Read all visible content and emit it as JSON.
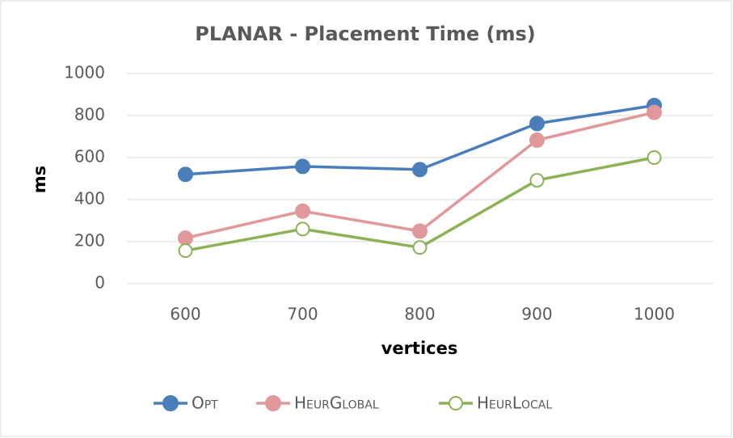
{
  "chart_data": {
    "type": "line",
    "title": "PLANAR - Placement Time (ms)",
    "x_label": "vertices",
    "y_label": "ms",
    "categories": [
      "600",
      "700",
      "800",
      "900",
      "1000"
    ],
    "series": [
      {
        "name": "Opt",
        "color": "#4a7ebb",
        "marker": "filled",
        "values": [
          520,
          558,
          543,
          762,
          848
        ]
      },
      {
        "name": "HeurGlobal",
        "color": "#e0989a",
        "marker": "filled",
        "values": [
          217,
          345,
          250,
          683,
          815
        ]
      },
      {
        "name": "HeurLocal",
        "color": "#8db255",
        "marker": "hollow",
        "values": [
          157,
          260,
          172,
          492,
          600
        ]
      }
    ],
    "ylim": [
      0,
      1000
    ],
    "yticks": [
      0,
      200,
      400,
      600,
      800,
      1000
    ],
    "grid": true,
    "legend": "bottom"
  }
}
